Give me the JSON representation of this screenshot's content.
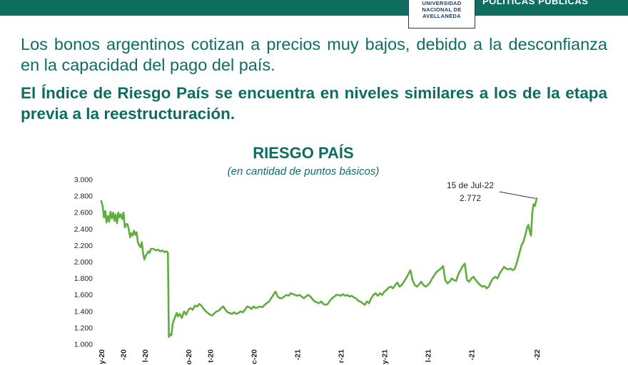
{
  "header": {
    "brand": "POLÍTICAS PÚBLICAS",
    "university_lines": [
      "UNIVERSIDAD",
      "NACIONAL DE",
      "AVELLANEDA"
    ]
  },
  "text": {
    "lead": "Los bonos argentinos cotizan a precios muy bajos, debido a la desconfianza en la capacidad del pago del país.",
    "bold_lead": "El Índice de Riesgo País se encuentra en niveles similares a los de la etapa previa a la reestructuración."
  },
  "colors": {
    "primary": "#0d6e60",
    "line": "#5fad3c",
    "axis_text": "#222222"
  },
  "chart_data": {
    "type": "line",
    "title": "RIESGO PAÍS",
    "subtitle": "(en cantidad de puntos básicos)",
    "ylim": [
      1000,
      3000
    ],
    "yticks": [
      1000,
      1200,
      1400,
      1600,
      1800,
      2000,
      2200,
      2400,
      2600,
      2800,
      3000
    ],
    "ytick_labels": [
      "1.000",
      "1.200",
      "1.400",
      "1.600",
      "1.800",
      "2.000",
      "2.200",
      "2.400",
      "2.600",
      "2.800",
      "3.000"
    ],
    "xlim": [
      0,
      100
    ],
    "xtick_positions": [
      0,
      5,
      10,
      15,
      20,
      25,
      30,
      35,
      40,
      45,
      50,
      55,
      60,
      65,
      70,
      75,
      80,
      85,
      90,
      95,
      100
    ],
    "xtick_labels": [
      "y-20",
      "-20",
      "l-20",
      "",
      "o-20",
      "t-20",
      "",
      "c-20",
      "",
      "-21",
      "",
      "r-21",
      "",
      "y-21",
      "",
      "l-21",
      "",
      "-21",
      "",
      "",
      "-22"
    ],
    "annotation": {
      "date": "15 de Jul-22",
      "value_label": "2.772",
      "x": 100,
      "y": 2772
    },
    "series": [
      {
        "points": [
          [
            0,
            2740
          ],
          [
            0.3,
            2680
          ],
          [
            0.6,
            2540
          ],
          [
            0.9,
            2620
          ],
          [
            1.2,
            2480
          ],
          [
            1.5,
            2560
          ],
          [
            1.8,
            2490
          ],
          [
            2.1,
            2610
          ],
          [
            2.4,
            2530
          ],
          [
            2.7,
            2600
          ],
          [
            3,
            2500
          ],
          [
            3.3,
            2580
          ],
          [
            3.6,
            2470
          ],
          [
            3.9,
            2600
          ],
          [
            4.2,
            2540
          ],
          [
            4.5,
            2580
          ],
          [
            4.8,
            2520
          ],
          [
            5.1,
            2600
          ],
          [
            5.4,
            2420
          ],
          [
            5.7,
            2460
          ],
          [
            6,
            2460
          ],
          [
            6.3,
            2400
          ],
          [
            6.6,
            2300
          ],
          [
            6.9,
            2350
          ],
          [
            7.2,
            2320
          ],
          [
            7.5,
            2380
          ],
          [
            7.8,
            2330
          ],
          [
            8.1,
            2360
          ],
          [
            8.4,
            2240
          ],
          [
            8.7,
            2200
          ],
          [
            9,
            2180
          ],
          [
            9.3,
            2240
          ],
          [
            9.6,
            2100
          ],
          [
            9.9,
            2030
          ],
          [
            10.2,
            2080
          ],
          [
            10.5,
            2100
          ],
          [
            10.8,
            2130
          ],
          [
            11.1,
            2110
          ],
          [
            11.4,
            2160
          ],
          [
            12,
            2160
          ],
          [
            12.5,
            2140
          ],
          [
            13,
            2150
          ],
          [
            13.5,
            2130
          ],
          [
            14,
            2140
          ],
          [
            14.5,
            2120
          ],
          [
            15,
            2130
          ],
          [
            15.3,
            2110
          ],
          [
            15.5,
            1090
          ],
          [
            15.8,
            1120
          ],
          [
            16.1,
            1110
          ],
          [
            16.4,
            1250
          ],
          [
            16.7,
            1300
          ],
          [
            17,
            1340
          ],
          [
            17.3,
            1380
          ],
          [
            17.6,
            1340
          ],
          [
            18,
            1370
          ],
          [
            18.5,
            1320
          ],
          [
            19,
            1400
          ],
          [
            19.5,
            1360
          ],
          [
            20,
            1420
          ],
          [
            20.5,
            1440
          ],
          [
            21,
            1420
          ],
          [
            21.5,
            1470
          ],
          [
            22,
            1460
          ],
          [
            22.5,
            1490
          ],
          [
            23,
            1470
          ],
          [
            23.5,
            1430
          ],
          [
            24,
            1400
          ],
          [
            24.5,
            1380
          ],
          [
            25,
            1360
          ],
          [
            25.5,
            1350
          ],
          [
            26,
            1380
          ],
          [
            26.5,
            1400
          ],
          [
            27,
            1410
          ],
          [
            27.5,
            1440
          ],
          [
            28,
            1460
          ],
          [
            28.5,
            1420
          ],
          [
            29,
            1390
          ],
          [
            29.5,
            1380
          ],
          [
            30,
            1370
          ],
          [
            30.5,
            1390
          ],
          [
            31,
            1370
          ],
          [
            31.5,
            1380
          ],
          [
            32,
            1400
          ],
          [
            32.5,
            1390
          ],
          [
            33,
            1420
          ],
          [
            33.5,
            1460
          ],
          [
            34,
            1450
          ],
          [
            34.5,
            1430
          ],
          [
            35,
            1460
          ],
          [
            35.5,
            1440
          ],
          [
            36,
            1450
          ],
          [
            36.5,
            1460
          ],
          [
            37,
            1450
          ],
          [
            37.5,
            1480
          ],
          [
            38,
            1500
          ],
          [
            38.5,
            1520
          ],
          [
            39,
            1560
          ],
          [
            39.5,
            1600
          ],
          [
            40,
            1640
          ],
          [
            40.5,
            1580
          ],
          [
            41,
            1560
          ],
          [
            41.5,
            1560
          ],
          [
            42,
            1580
          ],
          [
            42.5,
            1600
          ],
          [
            43,
            1590
          ],
          [
            43.5,
            1620
          ],
          [
            44,
            1610
          ],
          [
            44.5,
            1600
          ],
          [
            45,
            1590
          ],
          [
            45.5,
            1600
          ],
          [
            46,
            1580
          ],
          [
            46.5,
            1560
          ],
          [
            47,
            1580
          ],
          [
            47.5,
            1600
          ],
          [
            48,
            1580
          ],
          [
            48.5,
            1550
          ],
          [
            49,
            1520
          ],
          [
            49.5,
            1510
          ],
          [
            50,
            1500
          ],
          [
            50.5,
            1520
          ],
          [
            51,
            1490
          ],
          [
            51.5,
            1480
          ],
          [
            52,
            1490
          ],
          [
            52.5,
            1530
          ],
          [
            53,
            1560
          ],
          [
            53.5,
            1580
          ],
          [
            54,
            1600
          ],
          [
            54.5,
            1600
          ],
          [
            55,
            1590
          ],
          [
            55.5,
            1610
          ],
          [
            56,
            1590
          ],
          [
            56.5,
            1600
          ],
          [
            57,
            1580
          ],
          [
            57.5,
            1590
          ],
          [
            58,
            1570
          ],
          [
            58.5,
            1560
          ],
          [
            59,
            1530
          ],
          [
            59.5,
            1520
          ],
          [
            60,
            1500
          ],
          [
            60.5,
            1480
          ],
          [
            61,
            1520
          ],
          [
            61.5,
            1500
          ],
          [
            62,
            1560
          ],
          [
            62.5,
            1600
          ],
          [
            63,
            1620
          ],
          [
            63.5,
            1590
          ],
          [
            64,
            1620
          ],
          [
            64.5,
            1600
          ],
          [
            65,
            1640
          ],
          [
            65.5,
            1660
          ],
          [
            66,
            1690
          ],
          [
            66.5,
            1700
          ],
          [
            67,
            1680
          ],
          [
            67.5,
            1720
          ],
          [
            68,
            1750
          ],
          [
            68.5,
            1700
          ],
          [
            69,
            1720
          ],
          [
            69.5,
            1760
          ],
          [
            70,
            1800
          ],
          [
            70.5,
            1850
          ],
          [
            71,
            1900
          ],
          [
            71.5,
            1780
          ],
          [
            72,
            1720
          ],
          [
            72.5,
            1700
          ],
          [
            73,
            1730
          ],
          [
            73.5,
            1760
          ],
          [
            74,
            1720
          ],
          [
            74.5,
            1700
          ],
          [
            75,
            1720
          ],
          [
            75.5,
            1750
          ],
          [
            76,
            1800
          ],
          [
            76.5,
            1840
          ],
          [
            77,
            1880
          ],
          [
            77.5,
            1900
          ],
          [
            78,
            1920
          ],
          [
            78.5,
            1950
          ],
          [
            79,
            1780
          ],
          [
            79.5,
            1740
          ],
          [
            80,
            1760
          ],
          [
            80.5,
            1800
          ],
          [
            81,
            1780
          ],
          [
            81.5,
            1770
          ],
          [
            82,
            1850
          ],
          [
            82.5,
            1900
          ],
          [
            83,
            1950
          ],
          [
            83.5,
            1980
          ],
          [
            84,
            1780
          ],
          [
            84.5,
            1760
          ],
          [
            85,
            1800
          ],
          [
            85.5,
            1820
          ],
          [
            86,
            1780
          ],
          [
            86.5,
            1750
          ],
          [
            87,
            1720
          ],
          [
            87.5,
            1700
          ],
          [
            88,
            1710
          ],
          [
            88.5,
            1680
          ],
          [
            89,
            1700
          ],
          [
            89.5,
            1760
          ],
          [
            90,
            1800
          ],
          [
            90.5,
            1820
          ],
          [
            91,
            1800
          ],
          [
            91.5,
            1860
          ],
          [
            92,
            1900
          ],
          [
            92.5,
            1940
          ],
          [
            93,
            1920
          ],
          [
            93.5,
            1910
          ],
          [
            94,
            1920
          ],
          [
            94.5,
            1900
          ],
          [
            95,
            1920
          ],
          [
            95.5,
            2000
          ],
          [
            96,
            2100
          ],
          [
            96.5,
            2200
          ],
          [
            97,
            2250
          ],
          [
            97.5,
            2350
          ],
          [
            97.8,
            2420
          ],
          [
            98.1,
            2450
          ],
          [
            98.4,
            2380
          ],
          [
            98.7,
            2320
          ],
          [
            99,
            2600
          ],
          [
            99.3,
            2700
          ],
          [
            99.6,
            2680
          ],
          [
            100,
            2772
          ]
        ]
      }
    ]
  }
}
